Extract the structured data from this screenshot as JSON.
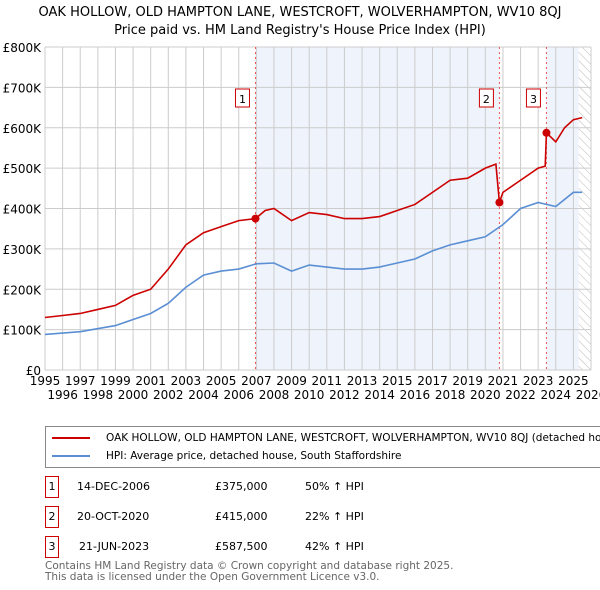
{
  "title": "OAK HOLLOW, OLD HAMPTON LANE, WESTCROFT, WOLVERHAMPTON, WV10 8QJ",
  "subtitle": "Price paid vs. HM Land Registry's House Price Index (HPI)",
  "chart_data": {
    "type": "line",
    "xlim": [
      1995,
      2026
    ],
    "ylim": [
      0,
      800000
    ],
    "xticks": [
      "1995",
      "1996",
      "1997",
      "1998",
      "1999",
      "2000",
      "2001",
      "2002",
      "2003",
      "2004",
      "2005",
      "2006",
      "2007",
      "2008",
      "2009",
      "2010",
      "2011",
      "2012",
      "2013",
      "2014",
      "2015",
      "2016",
      "2017",
      "2018",
      "2019",
      "2020",
      "2021",
      "2022",
      "2023",
      "2024",
      "2025",
      "2026"
    ],
    "yticks": [
      {
        "v": 0,
        "l": "£0"
      },
      {
        "v": 100000,
        "l": "£100K"
      },
      {
        "v": 200000,
        "l": "£200K"
      },
      {
        "v": 300000,
        "l": "£300K"
      },
      {
        "v": 400000,
        "l": "£400K"
      },
      {
        "v": 500000,
        "l": "£500K"
      },
      {
        "v": 600000,
        "l": "£600K"
      },
      {
        "v": 700000,
        "l": "£700K"
      },
      {
        "v": 800000,
        "l": "£800K"
      }
    ],
    "series": [
      {
        "name": "OAK HOLLOW, OLD HAMPTON LANE, WESTCROFT, WOLVERHAMPTON, WV10 8QJ (detached house)",
        "color": "#cc0000",
        "x": [
          1995,
          1996,
          1997,
          1998,
          1999,
          2000,
          2001,
          2002,
          2003,
          2004,
          2005,
          2006,
          2006.95,
          2007.5,
          2008,
          2008.5,
          2009,
          2010,
          2011,
          2012,
          2013,
          2014,
          2015,
          2016,
          2017,
          2018,
          2019,
          2020,
          2020.6,
          2020.8,
          2021,
          2022,
          2023,
          2023.4,
          2023.47,
          2024,
          2024.5,
          2025,
          2025.5
        ],
        "y": [
          130000,
          135000,
          140000,
          150000,
          160000,
          185000,
          200000,
          250000,
          310000,
          340000,
          355000,
          370000,
          375000,
          395000,
          400000,
          385000,
          370000,
          390000,
          385000,
          375000,
          375000,
          380000,
          395000,
          410000,
          440000,
          470000,
          475000,
          500000,
          510000,
          415000,
          440000,
          470000,
          500000,
          505000,
          587500,
          565000,
          600000,
          620000,
          625000
        ]
      },
      {
        "name": "HPI: Average price, detached house, South Staffordshire",
        "color": "#5b8fd4",
        "x": [
          1995,
          1997,
          1999,
          2000,
          2001,
          2002,
          2003,
          2004,
          2005,
          2006,
          2007,
          2008,
          2009,
          2010,
          2011,
          2012,
          2013,
          2014,
          2015,
          2016,
          2017,
          2018,
          2019,
          2020,
          2021,
          2022,
          2023,
          2024,
          2025,
          2025.5
        ],
        "y": [
          88000,
          95000,
          110000,
          125000,
          140000,
          165000,
          205000,
          235000,
          245000,
          250000,
          263000,
          265000,
          245000,
          260000,
          255000,
          250000,
          250000,
          255000,
          265000,
          275000,
          295000,
          310000,
          320000,
          330000,
          360000,
          400000,
          415000,
          405000,
          440000,
          440000
        ]
      }
    ],
    "sales": [
      {
        "n": "1",
        "date": "14-DEC-2006",
        "x": 2006.95,
        "price": "£375,000",
        "value": 375000,
        "hpi": "50% ↑ HPI"
      },
      {
        "n": "2",
        "date": "20-OCT-2020",
        "x": 2020.8,
        "price": "£415,000",
        "value": 415000,
        "hpi": "22% ↑ HPI"
      },
      {
        "n": "3",
        "date": "21-JUN-2023",
        "x": 2023.47,
        "price": "£587,500",
        "value": 587500,
        "hpi": "42% ↑ HPI"
      }
    ],
    "shaded_ranges": [
      [
        2006.95,
        2020.8
      ],
      [
        2023.47,
        2025.3
      ]
    ],
    "future_from": 2025.3
  },
  "legend": {
    "red": "OAK HOLLOW, OLD HAMPTON LANE, WESTCROFT, WOLVERHAMPTON, WV10 8QJ (detached house)",
    "blue": "HPI: Average price, detached house, South Staffordshire"
  },
  "footer": [
    "Contains HM Land Registry data © Crown copyright and database right 2025.",
    "This data is licensed under the Open Government Licence v3.0."
  ]
}
